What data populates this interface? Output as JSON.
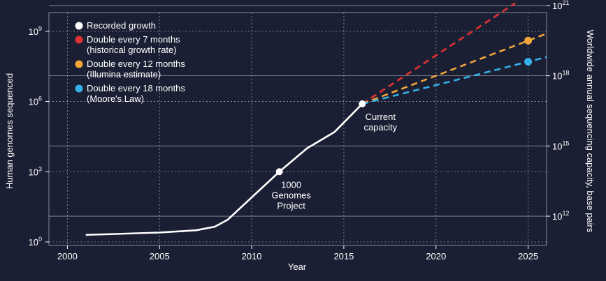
{
  "chart_data": {
    "type": "line",
    "xlabel": "Year",
    "ylabel_left": "Human genomes sequenced",
    "ylabel_right": "Worldwide annual sequencing capacity, base pairs",
    "xlim": [
      1999,
      2026
    ],
    "x_ticks": [
      "2000",
      "2005",
      "2010",
      "2015",
      "2020",
      "2025"
    ],
    "ylim_left_log10": [
      -0.15,
      9.8
    ],
    "y_ticks_left": [
      {
        "base": "10",
        "exp": "0",
        "log": 0
      },
      {
        "base": "10",
        "exp": "3",
        "log": 3
      },
      {
        "base": "10",
        "exp": "6",
        "log": 6
      },
      {
        "base": "10",
        "exp": "9",
        "log": 9
      }
    ],
    "y_ticks_right": [
      {
        "base": "10",
        "exp": "12",
        "log_left": 1.1
      },
      {
        "base": "10",
        "exp": "15",
        "log_left": 4.1
      },
      {
        "base": "10",
        "exp": "18",
        "log_left": 7.1
      },
      {
        "base": "10",
        "exp": "21",
        "log_left": 10.1
      }
    ],
    "grid": true,
    "legend_position": "top-left",
    "series": [
      {
        "name": "Recorded growth",
        "color": "#ffffff",
        "style": "solid",
        "points": [
          [
            2001,
            0.3
          ],
          [
            2005,
            0.4
          ],
          [
            2007,
            0.5
          ],
          [
            2008,
            0.65
          ],
          [
            2008.7,
            0.95
          ],
          [
            2011.5,
            3.0
          ],
          [
            2013,
            4.0
          ],
          [
            2014.5,
            4.7
          ],
          [
            2016,
            5.9
          ]
        ]
      },
      {
        "name": "Double every 7 months",
        "name_line2": "(historical growth rate)",
        "color": "#e03232",
        "style": "dashed",
        "points": [
          [
            2016,
            5.9
          ],
          [
            2024.3,
            10.2
          ]
        ]
      },
      {
        "name": "Double every 12 months",
        "name_line2": "(Illumina estimate)",
        "color": "#f2a63a",
        "style": "dashed",
        "points": [
          [
            2016,
            5.9
          ],
          [
            2025,
            8.6
          ],
          [
            2026,
            8.9
          ]
        ],
        "marker_x": 2025
      },
      {
        "name": "Double every 18 months",
        "name_line2": "(Moore's Law)",
        "color": "#35b1e8",
        "style": "dashed",
        "points": [
          [
            2016,
            5.9
          ],
          [
            2025,
            7.7
          ],
          [
            2026,
            7.9
          ]
        ],
        "marker_x": 2025
      }
    ],
    "annotations": [
      {
        "lines": [
          "1000",
          "Genomes",
          "Project"
        ],
        "x": 2011.5,
        "y": 3.0
      },
      {
        "lines": [
          "Current",
          "capacity"
        ],
        "x": 2016,
        "y": 5.9
      }
    ]
  }
}
